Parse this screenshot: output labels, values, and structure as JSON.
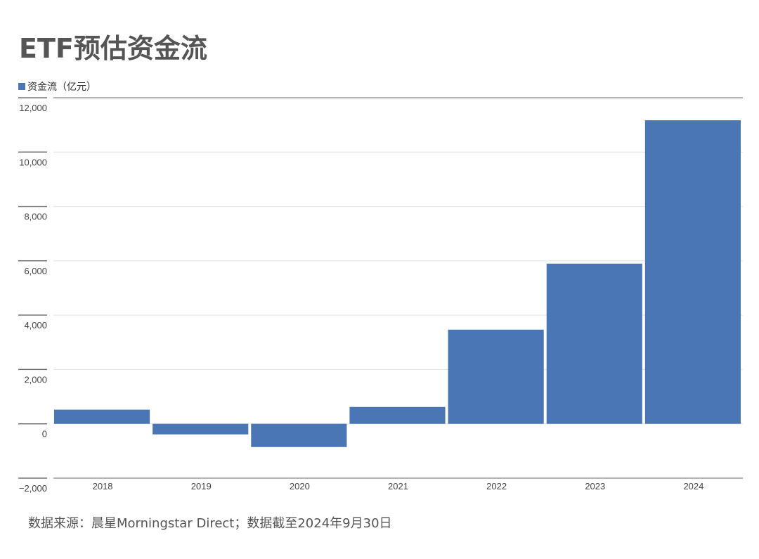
{
  "title": "ETF预估资金流",
  "legend": {
    "label": "资金流（亿元）",
    "color": "#4a76b5"
  },
  "source": "数据来源：晨星Morningstar Direct；数据截至2024年9月30日",
  "chart_data": {
    "type": "bar",
    "title": "ETF预估资金流",
    "xlabel": "",
    "ylabel": "资金流（亿元）",
    "categories": [
      "2018",
      "2019",
      "2020",
      "2021",
      "2022",
      "2023",
      "2024"
    ],
    "series": [
      {
        "name": "资金流（亿元）",
        "values": [
          520,
          -390,
          -855,
          620,
          3465,
          5895,
          11170
        ],
        "color": "#4a76b5"
      }
    ],
    "ylim": [
      -2000,
      12000
    ],
    "yticks": [
      -2000,
      0,
      2000,
      4000,
      6000,
      8000,
      10000,
      12000
    ],
    "ytick_labels": [
      "−2,000",
      "0",
      "2,000",
      "4,000",
      "6,000",
      "8,000",
      "10,000",
      "12,000"
    ],
    "grid": true,
    "legend_position": "top-left"
  }
}
